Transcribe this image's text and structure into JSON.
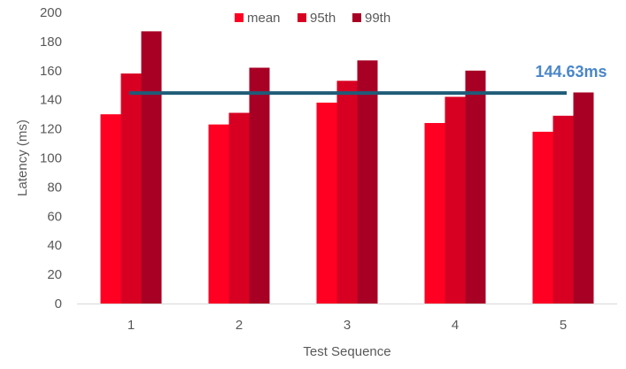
{
  "chart_data": {
    "type": "bar",
    "title": "",
    "xlabel": "Test Sequence",
    "ylabel": "Latency (ms)",
    "categories": [
      "1",
      "2",
      "3",
      "4",
      "5"
    ],
    "ylim": [
      0,
      200
    ],
    "yticks": [
      0,
      20,
      40,
      60,
      80,
      100,
      120,
      140,
      160,
      180,
      200
    ],
    "grid": false,
    "legend_position": "top",
    "series": [
      {
        "name": "mean",
        "color": "#FF0022",
        "values": [
          130,
          123,
          138,
          124,
          118
        ]
      },
      {
        "name": "95th",
        "color": "#D80022",
        "values": [
          158,
          131,
          153,
          142,
          129
        ]
      },
      {
        "name": "99th",
        "color": "#A80025",
        "values": [
          187,
          162,
          167,
          160,
          145
        ]
      }
    ],
    "reference_line": {
      "value": 144.63,
      "label": "144.63ms",
      "color": "#1F5C78",
      "label_color": "#4A86C8"
    }
  }
}
